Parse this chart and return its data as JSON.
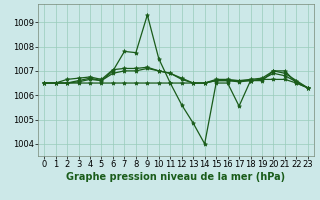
{
  "xlabel": "Graphe pression niveau de la mer (hPa)",
  "background_color": "#cce8e8",
  "grid_color": "#99ccbb",
  "line_color": "#1a5c1a",
  "marker": "*",
  "series": [
    {
      "x": [
        0,
        1,
        2,
        3,
        4,
        5,
        6,
        7,
        8,
        9,
        10,
        11,
        12,
        13,
        14,
        15,
        16,
        17,
        18,
        19,
        20,
        21,
        22,
        23
      ],
      "y": [
        1006.5,
        1006.5,
        1006.5,
        1006.6,
        1006.7,
        1006.6,
        1007.0,
        1007.8,
        1007.75,
        1009.3,
        1007.5,
        1006.5,
        1005.6,
        1004.85,
        1004.0,
        1006.5,
        1006.5,
        1005.55,
        1006.6,
        1006.6,
        1007.0,
        1007.0,
        1006.5,
        1006.3
      ]
    },
    {
      "x": [
        0,
        1,
        2,
        3,
        4,
        5,
        6,
        7,
        8,
        9,
        10,
        11,
        12,
        13,
        14,
        15,
        16,
        17,
        18,
        19,
        20,
        21,
        22,
        23
      ],
      "y": [
        1006.5,
        1006.5,
        1006.5,
        1006.5,
        1006.5,
        1006.5,
        1006.5,
        1006.5,
        1006.5,
        1006.5,
        1006.5,
        1006.5,
        1006.5,
        1006.5,
        1006.5,
        1006.6,
        1006.6,
        1006.6,
        1006.6,
        1006.65,
        1006.65,
        1006.65,
        1006.5,
        1006.3
      ]
    },
    {
      "x": [
        0,
        1,
        2,
        3,
        4,
        5,
        6,
        7,
        8,
        9,
        10,
        11,
        12,
        13,
        14,
        15,
        16,
        17,
        18,
        19,
        20,
        21,
        22,
        23
      ],
      "y": [
        1006.5,
        1006.5,
        1006.65,
        1006.7,
        1006.75,
        1006.65,
        1007.05,
        1007.1,
        1007.1,
        1007.15,
        1007.0,
        1006.9,
        1006.7,
        1006.5,
        1006.5,
        1006.65,
        1006.65,
        1006.6,
        1006.65,
        1006.7,
        1007.0,
        1006.9,
        1006.6,
        1006.3
      ]
    },
    {
      "x": [
        0,
        1,
        2,
        3,
        4,
        5,
        6,
        7,
        8,
        9,
        10,
        11,
        12,
        13,
        14,
        15,
        16,
        17,
        18,
        19,
        20,
        21,
        22,
        23
      ],
      "y": [
        1006.5,
        1006.5,
        1006.5,
        1006.55,
        1006.65,
        1006.6,
        1006.9,
        1007.0,
        1007.0,
        1007.1,
        1007.0,
        1006.9,
        1006.65,
        1006.5,
        1006.5,
        1006.6,
        1006.6,
        1006.55,
        1006.6,
        1006.65,
        1006.9,
        1006.8,
        1006.55,
        1006.3
      ]
    }
  ],
  "ylim": [
    1003.5,
    1009.75
  ],
  "yticks": [
    1004,
    1005,
    1006,
    1007,
    1008,
    1009
  ],
  "xticks": [
    0,
    1,
    2,
    3,
    4,
    5,
    6,
    7,
    8,
    9,
    10,
    11,
    12,
    13,
    14,
    15,
    16,
    17,
    18,
    19,
    20,
    21,
    22,
    23
  ],
  "xlabel_fontsize": 7,
  "xlabel_fontweight": "bold",
  "tick_fontsize": 6,
  "lw": 0.9,
  "markersize": 3
}
